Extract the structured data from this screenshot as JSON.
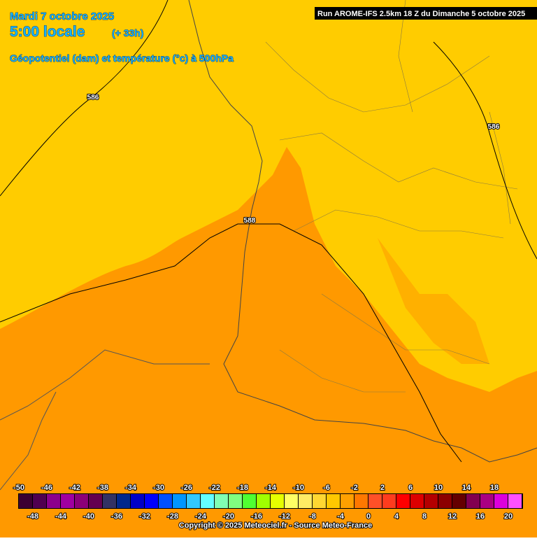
{
  "header": {
    "date": "Mardi 7 octobre 2025",
    "time": "5:00 locale",
    "lead": "(+ 33h)",
    "field": "Géopotentiel (dam) et température (°c) à 500hPa",
    "run": "Run AROME-IFS 2.5km 18 Z du Dimanche 5 octobre 2025"
  },
  "contours": [
    {
      "label": "586"
    },
    {
      "label": "588"
    },
    {
      "label": "586"
    }
  ],
  "legend": {
    "items": [
      {
        "value": -50,
        "color": "#3c0032"
      },
      {
        "value": -48,
        "color": "#500050"
      },
      {
        "value": -46,
        "color": "#8c008c"
      },
      {
        "value": -44,
        "color": "#a000a0"
      },
      {
        "value": -42,
        "color": "#8c0078"
      },
      {
        "value": -40,
        "color": "#640050"
      },
      {
        "value": -38,
        "color": "#323264"
      },
      {
        "value": -36,
        "color": "#00288c"
      },
      {
        "value": -34,
        "color": "#0000c8"
      },
      {
        "value": -32,
        "color": "#0000ff"
      },
      {
        "value": -30,
        "color": "#0050ff"
      },
      {
        "value": -28,
        "color": "#0096ff"
      },
      {
        "value": -26,
        "color": "#32c8ff"
      },
      {
        "value": -24,
        "color": "#64ffff"
      },
      {
        "value": -22,
        "color": "#80ffb4"
      },
      {
        "value": -20,
        "color": "#80ff80"
      },
      {
        "value": -18,
        "color": "#50ff32"
      },
      {
        "value": -16,
        "color": "#a0ff00"
      },
      {
        "value": -14,
        "color": "#e6ff00"
      },
      {
        "value": -12,
        "color": "#ffff64"
      },
      {
        "value": -10,
        "color": "#ffeb64"
      },
      {
        "value": -8,
        "color": "#ffd732"
      },
      {
        "value": -6,
        "color": "#ffc800"
      },
      {
        "value": -4,
        "color": "#ffa000"
      },
      {
        "value": -2,
        "color": "#ff7800"
      },
      {
        "value": 0,
        "color": "#ff5028"
      },
      {
        "value": 2,
        "color": "#ff3c1e"
      },
      {
        "value": 4,
        "color": "#ff0000"
      },
      {
        "value": 6,
        "color": "#dc0000"
      },
      {
        "value": 8,
        "color": "#b40000"
      },
      {
        "value": 10,
        "color": "#8c0000"
      },
      {
        "value": 12,
        "color": "#640000"
      },
      {
        "value": 14,
        "color": "#820050"
      },
      {
        "value": 16,
        "color": "#aa0082"
      },
      {
        "value": 18,
        "color": "#dc00dc"
      },
      {
        "value": 20,
        "color": "#ff50ff"
      }
    ]
  },
  "footer": {
    "copyright": "Copyright © 2025 Meteociel.fr - Source Meteo-France"
  }
}
